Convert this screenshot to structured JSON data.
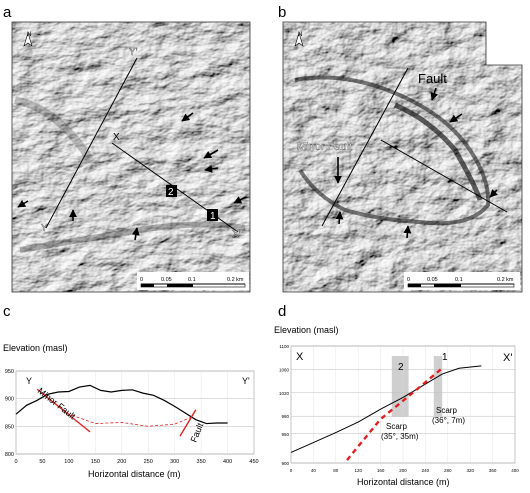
{
  "panels": {
    "a": {
      "letter": "a",
      "north": "N",
      "labels": {
        "y_prime": "Y'",
        "x": "X",
        "y": "Y",
        "x_prime": "X'",
        "site_1": "1",
        "site_2": "2"
      },
      "scale": {
        "ticks": [
          "0",
          "0.05",
          "0.1",
          "0.2 km"
        ]
      }
    },
    "b": {
      "letter": "b",
      "north": "N",
      "labels": {
        "fault": "Fault",
        "minor_fault": "Minor Fault"
      },
      "scale": {
        "ticks": [
          "0",
          "0.05",
          "0.1",
          "0.2 km"
        ]
      }
    },
    "c": {
      "letter": "c",
      "ylabel": "Elevation (masl)",
      "xlabel": "Horizontal distance (m)",
      "end_left": "Y",
      "end_right": "Y'",
      "annot_minor_fault": "Minor Fault",
      "annot_fault": "Fault"
    },
    "d": {
      "letter": "d",
      "ylabel": "Elevation (masl)",
      "xlabel": "Horizontal distance (m)",
      "end_left": "X",
      "end_right": "X'",
      "site_2": "2",
      "site_1": "1",
      "scarp_left_1": "Scarp",
      "scarp_left_2": "(35°, 35m)",
      "scarp_right_1": "Scarp",
      "scarp_right_2": "(36°, 7m)"
    }
  },
  "chart_data": [
    {
      "type": "line",
      "panel": "c",
      "xlabel": "Horizontal distance (m)",
      "ylabel": "Elevation (masl)",
      "xlim": [
        0,
        450
      ],
      "ylim": [
        800,
        950
      ],
      "x_ticks": [
        0,
        50,
        100,
        150,
        200,
        250,
        300,
        350,
        400,
        450
      ],
      "y_ticks": [
        800,
        850,
        900,
        950
      ],
      "grid": true,
      "series": [
        {
          "x": [
            0,
            20,
            40,
            60,
            80,
            100,
            120,
            140,
            160,
            180,
            200,
            220,
            240,
            260,
            280,
            300,
            320,
            340,
            360,
            380,
            400
          ],
          "y": [
            872,
            888,
            897,
            908,
            912,
            913,
            921,
            924,
            915,
            912,
            915,
            916,
            910,
            906,
            897,
            886,
            874,
            862,
            855,
            856,
            856
          ]
        },
        {
          "x": [
            60,
            100,
            150,
            200,
            250,
            300,
            330
          ],
          "y": [
            902,
            872,
            855,
            857,
            850,
            854,
            866
          ]
        },
        {
          "x": [
            40,
            140
          ],
          "y": [
            917,
            840
          ]
        },
        {
          "x": [
            310,
            340
          ],
          "y": [
            832,
            880
          ]
        }
      ]
    },
    {
      "type": "line",
      "panel": "d",
      "xlim": [
        0,
        400
      ],
      "ylim": [
        900,
        1100
      ],
      "x_ticks": [
        0,
        40,
        80,
        120,
        160,
        200,
        240,
        280,
        320,
        360,
        400
      ],
      "y_ticks": [
        900,
        950,
        980,
        1020,
        1060,
        1100
      ],
      "y_tick_labels": [
        "900",
        "950",
        "980",
        "1020",
        "1060",
        "1100"
      ],
      "grid": true,
      "bands": [
        {
          "x": [
            180,
            210
          ]
        },
        {
          "x": [
            255,
            270
          ]
        }
      ],
      "series": [
        {
          "x": [
            0,
            40,
            80,
            120,
            160,
            200,
            240,
            270,
            300,
            340
          ],
          "y": [
            918,
            935,
            952,
            970,
            992,
            1012,
            1035,
            1052,
            1062,
            1066
          ]
        },
        {
          "x": [
            100,
            160,
            220,
            270
          ],
          "y": [
            905,
            975,
            1022,
            1062
          ]
        }
      ]
    }
  ]
}
